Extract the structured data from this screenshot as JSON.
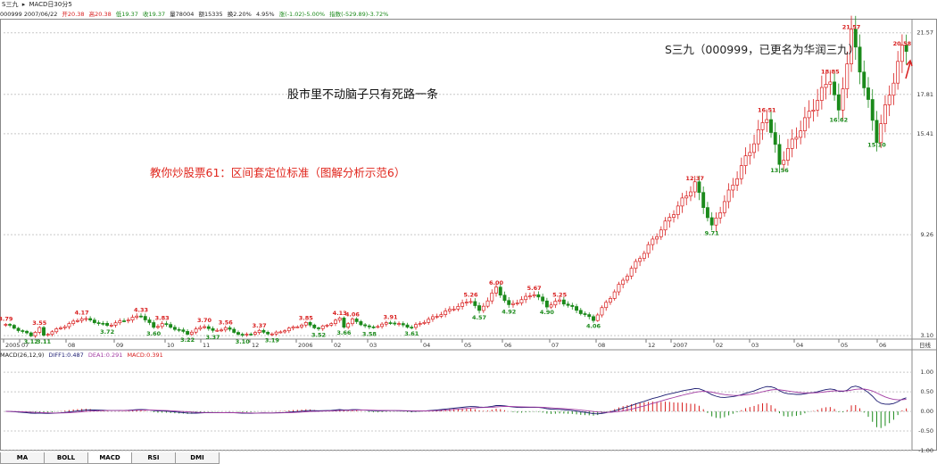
{
  "header": {
    "title": "S三九",
    "indicator": "MACD日30分5",
    "info": {
      "code_date": "000999 2007/06/22",
      "open": "开20.38",
      "high": "高20.38",
      "low": "低19.37",
      "close": "收19.37",
      "volume": "量78004",
      "amount": "额15335",
      "turnover": "换2.20%",
      "amplitude": "4.95%",
      "change": "涨(-1.02)-5.00%",
      "index": "指数(-529.89)-3.72%"
    }
  },
  "annotations": {
    "main_text": "股市里不动脑子只有死路一条",
    "subtitle": "教你炒股票61：区间套定位标准（图解分析示范6）",
    "stock_note": "S三九（000999，已更名为华润三九）"
  },
  "macd_header": {
    "name": "MACD(26,12,9)",
    "diff": "DIFF1:0.487",
    "dea": "DEA1:0.291",
    "macd": "MACD:0.391"
  },
  "tabs": [
    "MA",
    "BOLL",
    "MACD",
    "RSI",
    "DMI"
  ],
  "colors": {
    "up": "#d81e1e",
    "down": "#1b8a1b",
    "diff": "#1a1a70",
    "dea": "#a33ca3",
    "grid": "#c8c8c8"
  },
  "chart_data": {
    "type": "candlestick",
    "price_axis": {
      "ticks": [
        "21.57",
        "17.81",
        "15.41",
        "9.26",
        "3.10"
      ],
      "range": [
        3.1,
        21.57
      ]
    },
    "time_axis": [
      "2005",
      "07",
      "08",
      "09",
      "10",
      "11",
      "12",
      "2006",
      "02",
      "03",
      "04",
      "05",
      "06",
      "07",
      "08",
      "12",
      "2007",
      "02",
      "03",
      "04",
      "05",
      "06",
      "日线"
    ],
    "macd_axis": {
      "ticks": [
        "1.00",
        "0.50",
        "0.00",
        "-0.50",
        "-1.00"
      ],
      "range": [
        -1.0,
        1.3
      ]
    },
    "peaks": [
      {
        "label": "3.79",
        "i": 0,
        "v": 3.79,
        "kind": "high"
      },
      {
        "label": "3.12",
        "i": 6,
        "v": 3.12,
        "kind": "low"
      },
      {
        "label": "3.11",
        "i": 9,
        "v": 3.11,
        "kind": "low"
      },
      {
        "label": "3.55",
        "i": 8,
        "v": 3.55,
        "kind": "high"
      },
      {
        "label": "4.17",
        "i": 18,
        "v": 4.17,
        "kind": "high"
      },
      {
        "label": "3.72",
        "i": 24,
        "v": 3.72,
        "kind": "low"
      },
      {
        "label": "4.33",
        "i": 32,
        "v": 4.33,
        "kind": "high"
      },
      {
        "label": "3.60",
        "i": 35,
        "v": 3.6,
        "kind": "low"
      },
      {
        "label": "3.83",
        "i": 37,
        "v": 3.83,
        "kind": "high"
      },
      {
        "label": "3.22",
        "i": 43,
        "v": 3.22,
        "kind": "low"
      },
      {
        "label": "3.70",
        "i": 47,
        "v": 3.7,
        "kind": "high"
      },
      {
        "label": "3.37",
        "i": 49,
        "v": 3.37,
        "kind": "low"
      },
      {
        "label": "3.56",
        "i": 52,
        "v": 3.56,
        "kind": "high"
      },
      {
        "label": "3.10",
        "i": 56,
        "v": 3.1,
        "kind": "low"
      },
      {
        "label": "3.37",
        "i": 60,
        "v": 3.37,
        "kind": "high"
      },
      {
        "label": "3.19",
        "i": 63,
        "v": 3.19,
        "kind": "low"
      },
      {
        "label": "3.85",
        "i": 71,
        "v": 3.85,
        "kind": "high"
      },
      {
        "label": "3.52",
        "i": 74,
        "v": 3.52,
        "kind": "low"
      },
      {
        "label": "4.13",
        "i": 79,
        "v": 4.13,
        "kind": "high"
      },
      {
        "label": "4.06",
        "i": 82,
        "v": 4.06,
        "kind": "high"
      },
      {
        "label": "3.66",
        "i": 80,
        "v": 3.66,
        "kind": "low"
      },
      {
        "label": "3.58",
        "i": 86,
        "v": 3.58,
        "kind": "low"
      },
      {
        "label": "3.91",
        "i": 91,
        "v": 3.91,
        "kind": "high"
      },
      {
        "label": "3.61",
        "i": 96,
        "v": 3.61,
        "kind": "low"
      },
      {
        "label": "5.26",
        "i": 110,
        "v": 5.26,
        "kind": "high"
      },
      {
        "label": "4.57",
        "i": 112,
        "v": 4.57,
        "kind": "low"
      },
      {
        "label": "6.00",
        "i": 116,
        "v": 6.0,
        "kind": "high"
      },
      {
        "label": "4.92",
        "i": 119,
        "v": 4.92,
        "kind": "low"
      },
      {
        "label": "5.67",
        "i": 125,
        "v": 5.67,
        "kind": "high"
      },
      {
        "label": "4.90",
        "i": 128,
        "v": 4.9,
        "kind": "low"
      },
      {
        "label": "5.25",
        "i": 131,
        "v": 5.25,
        "kind": "high"
      },
      {
        "label": "4.06",
        "i": 139,
        "v": 4.06,
        "kind": "low"
      },
      {
        "label": "12.37",
        "i": 163,
        "v": 12.37,
        "kind": "high"
      },
      {
        "label": "9.71",
        "i": 167,
        "v": 9.71,
        "kind": "low"
      },
      {
        "label": "16.51",
        "i": 180,
        "v": 16.51,
        "kind": "high"
      },
      {
        "label": "13.56",
        "i": 183,
        "v": 13.56,
        "kind": "low"
      },
      {
        "label": "18.85",
        "i": 195,
        "v": 18.85,
        "kind": "high"
      },
      {
        "label": "16.62",
        "i": 197,
        "v": 16.62,
        "kind": "low"
      },
      {
        "label": "21.57",
        "i": 200,
        "v": 21.57,
        "kind": "high"
      },
      {
        "label": "15.10",
        "i": 206,
        "v": 15.1,
        "kind": "low"
      },
      {
        "label": "20.58",
        "i": 212,
        "v": 20.58,
        "kind": "high"
      }
    ]
  }
}
